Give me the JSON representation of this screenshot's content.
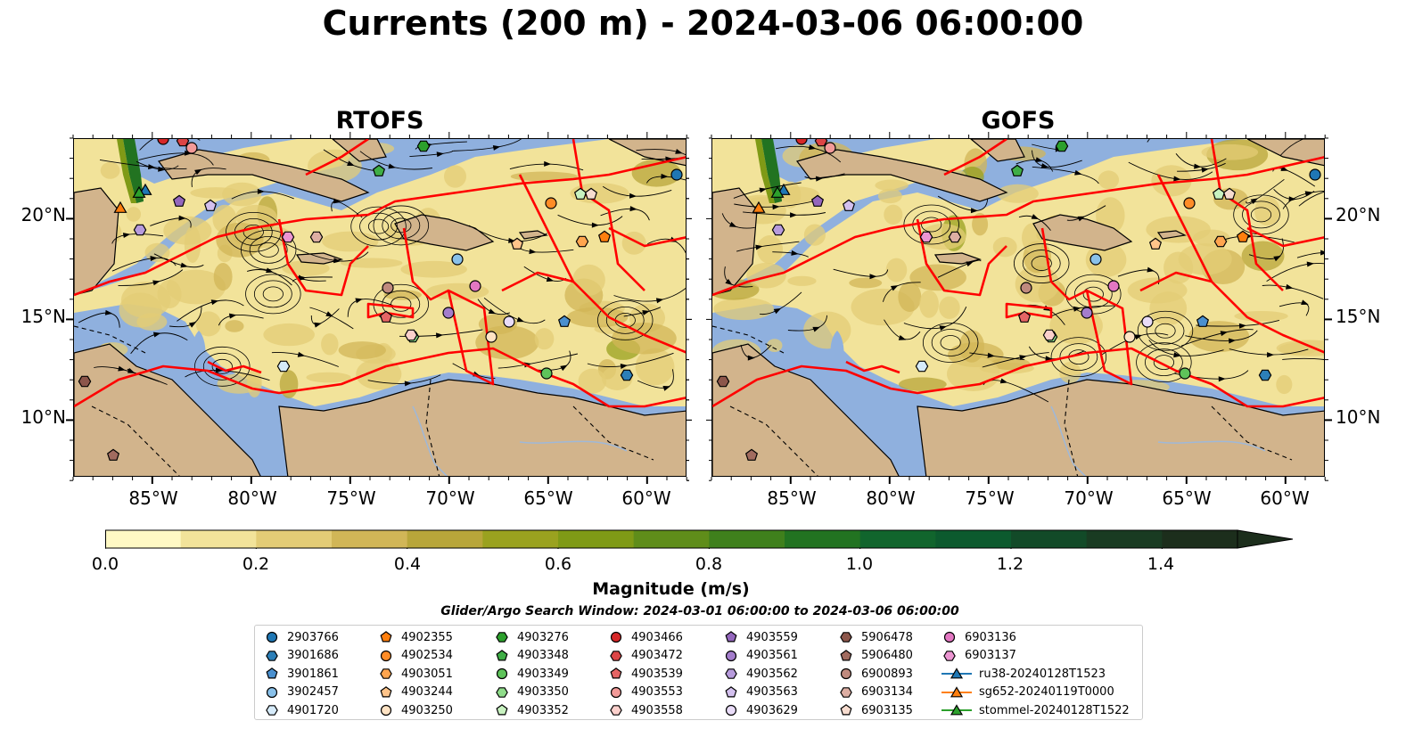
{
  "figure": {
    "title": "Currents (200 m) - 2024-03-06 06:00:00",
    "panels": [
      {
        "title": "RTOFS"
      },
      {
        "title": "GOFS"
      }
    ],
    "lon_labels": [
      "85°W",
      "80°W",
      "75°W",
      "70°W",
      "65°W",
      "60°W"
    ],
    "lat_labels": [
      "20°N",
      "15°N",
      "10°N"
    ],
    "colors": {
      "ocean": "#8fb0de",
      "land": "#d2b48c",
      "eez_lines": "#ff0000",
      "streamlines": "#000000"
    }
  },
  "colorbar": {
    "label": "Magnitude (m/s)",
    "ticks": [
      "0.0",
      "0.2",
      "0.4",
      "0.6",
      "0.8",
      "1.0",
      "1.2",
      "1.4"
    ],
    "range": [
      0,
      1.5
    ],
    "extend": "max",
    "colors": [
      "#fff9c4",
      "#f2e39a",
      "#e3cc76",
      "#d1b657",
      "#b8a63a",
      "#9aa21f",
      "#7f9a16",
      "#5f8d1a",
      "#3f801c",
      "#227321",
      "#11652d",
      "#0c5a2e",
      "#124a28",
      "#193b22",
      "#1c2e1c"
    ]
  },
  "search_window": "Glider/Argo Search Window: 2024-03-01 06:00:00 to 2024-03-06 06:00:00",
  "legend": {
    "columns": [
      [
        {
          "label": "2903766",
          "color": "#1f77b4",
          "marker": "circle"
        },
        {
          "label": "3901686",
          "color": "#2c7fb8",
          "marker": "hexagon"
        },
        {
          "label": "3901861",
          "color": "#4a90cf",
          "marker": "pentagon"
        },
        {
          "label": "3902457",
          "color": "#89c1ea",
          "marker": "circle"
        },
        {
          "label": "4901720",
          "color": "#d6ebfa",
          "marker": "hexagon"
        }
      ],
      [
        {
          "label": "4902355",
          "color": "#ff7f0e",
          "marker": "pentagon"
        },
        {
          "label": "4902534",
          "color": "#ff8c27",
          "marker": "circle"
        },
        {
          "label": "4903051",
          "color": "#ffa54f",
          "marker": "hexagon"
        },
        {
          "label": "4903244",
          "color": "#ffc48a",
          "marker": "pentagon"
        },
        {
          "label": "4903250",
          "color": "#ffe3c4",
          "marker": "circle"
        }
      ],
      [
        {
          "label": "4903276",
          "color": "#2ca02c",
          "marker": "hexagon"
        },
        {
          "label": "4903348",
          "color": "#3fae46",
          "marker": "pentagon"
        },
        {
          "label": "4903349",
          "color": "#5ec35a",
          "marker": "circle"
        },
        {
          "label": "4903350",
          "color": "#8fdc8a",
          "marker": "hexagon"
        },
        {
          "label": "4903352",
          "color": "#c8f2c0",
          "marker": "pentagon"
        }
      ],
      [
        {
          "label": "4903466",
          "color": "#d62728",
          "marker": "circle"
        },
        {
          "label": "4903472",
          "color": "#dc4546",
          "marker": "hexagon"
        },
        {
          "label": "4903539",
          "color": "#e56565",
          "marker": "pentagon"
        },
        {
          "label": "4903553",
          "color": "#f29a98",
          "marker": "circle"
        },
        {
          "label": "4903558",
          "color": "#fbd0cc",
          "marker": "hexagon"
        }
      ],
      [
        {
          "label": "4903559",
          "color": "#9467bd",
          "marker": "pentagon"
        },
        {
          "label": "4903561",
          "color": "#a47dcc",
          "marker": "circle"
        },
        {
          "label": "4903562",
          "color": "#b79bdc",
          "marker": "hexagon"
        },
        {
          "label": "4903563",
          "color": "#d3c0ee",
          "marker": "pentagon"
        },
        {
          "label": "4903629",
          "color": "#e9dcf8",
          "marker": "circle"
        }
      ],
      [
        {
          "label": "5906478",
          "color": "#8c564b",
          "marker": "hexagon"
        },
        {
          "label": "5906480",
          "color": "#a16b5f",
          "marker": "pentagon"
        },
        {
          "label": "6900893",
          "color": "#c08a7e",
          "marker": "circle"
        },
        {
          "label": "6903134",
          "color": "#ddaea3",
          "marker": "hexagon"
        },
        {
          "label": "6903135",
          "color": "#f7dccf",
          "marker": "pentagon"
        }
      ],
      [
        {
          "label": "6903136",
          "color": "#e377c2",
          "marker": "circle"
        },
        {
          "label": "6903137",
          "color": "#ec95d2",
          "marker": "hexagon"
        },
        {
          "label": "ru38-20240128T1523",
          "color": "#1f77b4",
          "marker": "triangle"
        },
        {
          "label": "sg652-20240119T0000",
          "color": "#ff7f0e",
          "marker": "triangle"
        },
        {
          "label": "stommel-20240128T1522",
          "color": "#2ca02c",
          "marker": "triangle"
        }
      ]
    ]
  }
}
